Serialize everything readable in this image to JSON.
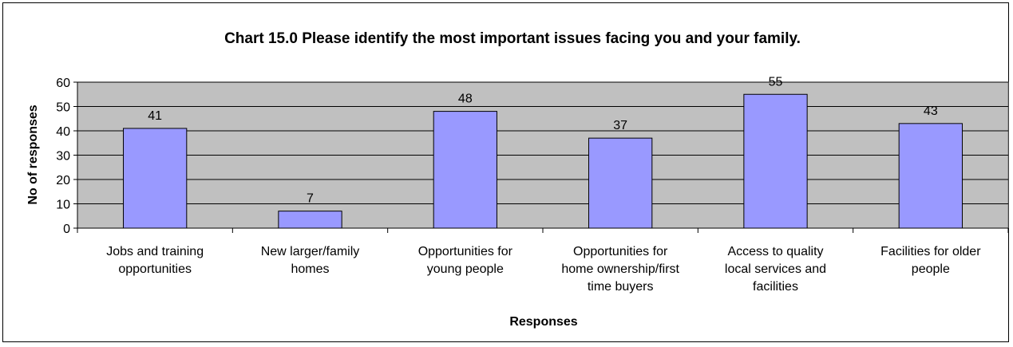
{
  "chart_data": {
    "type": "bar",
    "title": "Chart 15.0 Please identify the most important issues facing you and your family.",
    "xlabel": "Responses",
    "ylabel": "No of responses",
    "ylim": [
      0,
      60
    ],
    "yticks": [
      0,
      10,
      20,
      30,
      40,
      50,
      60
    ],
    "grid": true,
    "categories": [
      [
        "Jobs and training",
        "opportunities"
      ],
      [
        "New larger/family",
        "homes"
      ],
      [
        "Opportunities for",
        "young people"
      ],
      [
        "Opportunities for",
        "home ownership/first",
        "time buyers"
      ],
      [
        "Access to quality",
        "local services and",
        "facilities"
      ],
      [
        "Facilities for older",
        "people"
      ]
    ],
    "values": [
      41,
      7,
      48,
      37,
      55,
      43
    ],
    "colors": {
      "plot_background": "#c0c0c0",
      "bar_fill": "#9999ff",
      "bar_stroke": "#000000",
      "gridline": "#000000"
    }
  }
}
